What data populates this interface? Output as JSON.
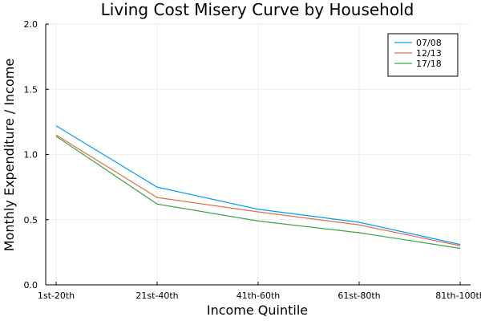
{
  "chart_data": {
    "type": "line",
    "title": "Living Cost Misery Curve by Household",
    "xlabel": "Income Quintile",
    "ylabel": "Monthly Expenditure / Income",
    "categories": [
      "1st-20th",
      "21st-40th",
      "41th-60th",
      "61st-80th",
      "81th-100th"
    ],
    "ylim": [
      0,
      2.0
    ],
    "yticks": [
      "0.0",
      "0.5",
      "1.0",
      "1.5",
      "2.0"
    ],
    "grid": true,
    "legend_position": "top-right",
    "series": [
      {
        "name": "07/08",
        "color": "#009af9",
        "values": [
          1.22,
          0.75,
          0.58,
          0.48,
          0.31
        ]
      },
      {
        "name": "12/13",
        "color": "#e26f46",
        "values": [
          1.15,
          0.67,
          0.56,
          0.46,
          0.3
        ]
      },
      {
        "name": "17/18",
        "color": "#3da44d",
        "values": [
          1.14,
          0.62,
          0.49,
          0.4,
          0.28
        ]
      }
    ]
  }
}
